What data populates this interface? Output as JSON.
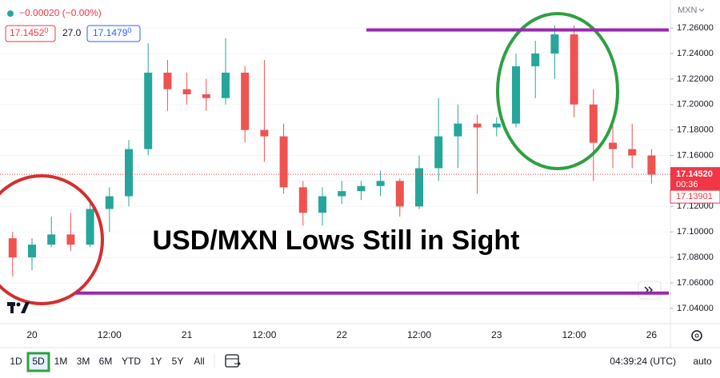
{
  "chart_data": {
    "type": "candlestick",
    "change": "−0.00020 (−0.00%)",
    "bid": "17.1452",
    "bid_sup": "0",
    "spread": "27.0",
    "ask": "17.1479",
    "ask_sup": "0",
    "currency": "MXN",
    "annotation": "USD/MXN Lows Still in Sight",
    "categories": [
      null,
      "20",
      null,
      null,
      null,
      "12:00",
      null,
      null,
      null,
      "21",
      null,
      null,
      null,
      "12:00",
      null,
      null,
      null,
      "22",
      null,
      null,
      null,
      "12:00",
      null,
      null,
      null,
      "23",
      null,
      null,
      null,
      "12:00",
      null,
      null,
      null,
      "26"
    ],
    "open": [
      17.095,
      17.08,
      17.09,
      17.098,
      17.09,
      17.118,
      17.128,
      17.165,
      17.225,
      17.212,
      17.208,
      17.205,
      17.225,
      17.18,
      17.175,
      17.135,
      17.115,
      17.128,
      17.132,
      17.136,
      17.14,
      17.12,
      17.15,
      17.175,
      17.185,
      17.182,
      17.185,
      17.23,
      17.24,
      17.255,
      17.2,
      17.17,
      17.165,
      17.16
    ],
    "high": [
      17.1,
      17.095,
      17.112,
      17.115,
      17.125,
      17.135,
      17.172,
      17.248,
      17.235,
      17.225,
      17.22,
      17.252,
      17.23,
      17.235,
      17.185,
      17.14,
      17.135,
      17.14,
      17.14,
      17.148,
      17.142,
      17.16,
      17.205,
      17.2,
      17.192,
      17.19,
      17.24,
      17.25,
      17.262,
      17.262,
      17.212,
      17.19,
      17.185,
      17.165
    ],
    "low": [
      17.065,
      17.07,
      17.088,
      17.085,
      17.088,
      17.1,
      17.12,
      17.16,
      17.195,
      17.2,
      17.195,
      17.2,
      17.17,
      17.155,
      17.13,
      17.105,
      17.105,
      17.122,
      17.125,
      17.128,
      17.112,
      17.118,
      17.14,
      17.15,
      17.13,
      17.175,
      17.182,
      17.205,
      17.22,
      17.19,
      17.14,
      17.15,
      17.15,
      17.138
    ],
    "close": [
      17.08,
      17.09,
      17.098,
      17.09,
      17.118,
      17.128,
      17.165,
      17.225,
      17.212,
      17.208,
      17.205,
      17.225,
      17.18,
      17.175,
      17.135,
      17.115,
      17.128,
      17.132,
      17.136,
      17.14,
      17.12,
      17.15,
      17.175,
      17.185,
      17.182,
      17.185,
      17.23,
      17.24,
      17.255,
      17.2,
      17.17,
      17.165,
      17.16,
      17.145
    ],
    "up_color": "#26a69a",
    "down_color": "#ef5350",
    "ylim": [
      17.028,
      17.282
    ],
    "yticks": [
      {
        "value": 17.26,
        "label": "17.26000"
      },
      {
        "value": 17.24,
        "label": "17.24000"
      },
      {
        "value": 17.22,
        "label": "17.22000"
      },
      {
        "value": 17.2,
        "label": "17.20000"
      },
      {
        "value": 17.18,
        "label": "17.18000"
      },
      {
        "value": 17.16,
        "label": "17.16000"
      },
      {
        "value": 17.14,
        "label": "17.14000"
      },
      {
        "value": 17.12,
        "label": "17.12000"
      },
      {
        "value": 17.1,
        "label": "17.10000"
      },
      {
        "value": 17.08,
        "label": "17.08000"
      },
      {
        "value": 17.06,
        "label": "17.06000"
      },
      {
        "value": 17.04,
        "label": "17.04000"
      }
    ],
    "grid": true,
    "levels": [
      {
        "value": 17.2585,
        "color": "#9c27b0"
      },
      {
        "value": 17.052,
        "color": "#9c27b0"
      }
    ],
    "last_price": {
      "value": 17.1452,
      "label": "17.14520",
      "countdown": "00:36",
      "color": "#f23645"
    },
    "prev_price": {
      "value": 17.13901,
      "label": "17.13901"
    },
    "ranges": [
      "1D",
      "5D",
      "1M",
      "3M",
      "6M",
      "YTD",
      "1Y",
      "5Y",
      "All"
    ],
    "active_range": 1,
    "clock": "04:39:24 (UTC)",
    "scale_mode": "auto"
  }
}
